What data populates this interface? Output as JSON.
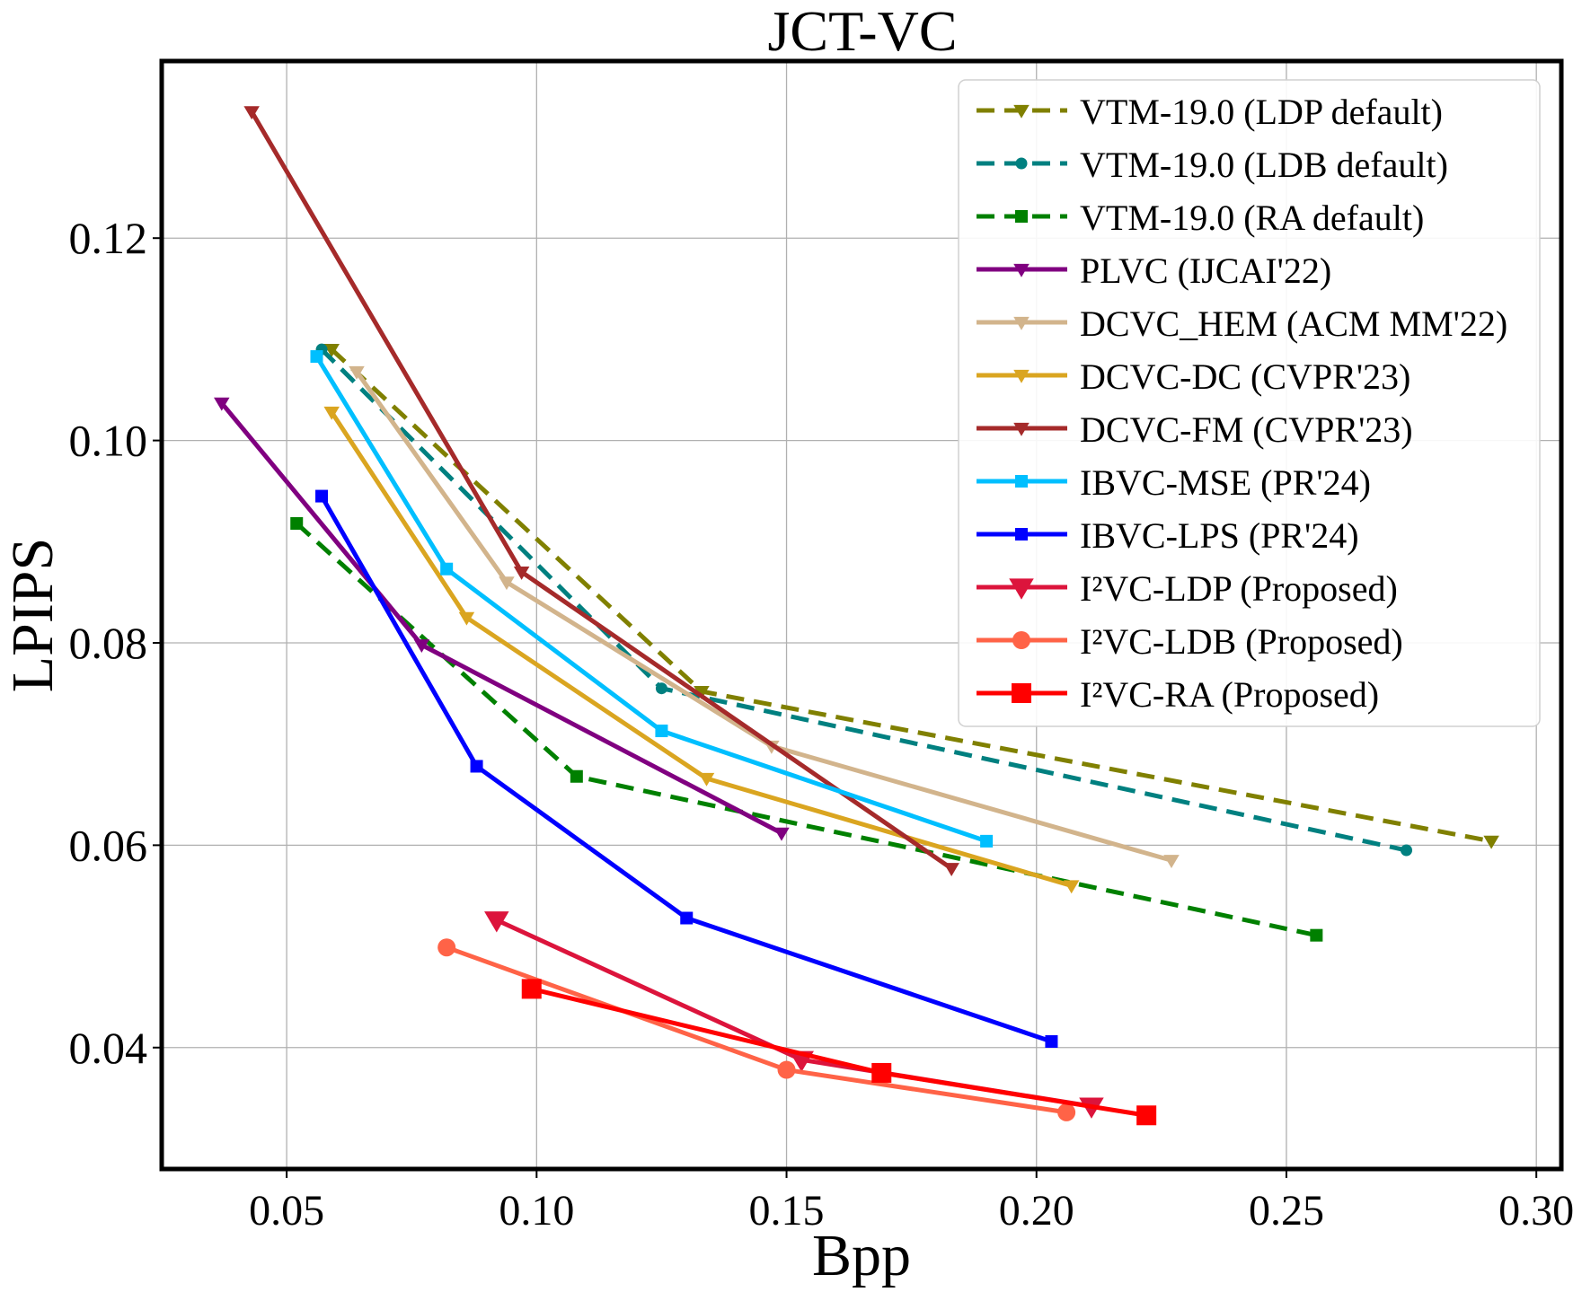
{
  "chart_data": {
    "type": "line",
    "title": "JCT-VC",
    "xlabel": "Bpp",
    "ylabel": "LPIPS",
    "xlim": [
      0.025,
      0.305
    ],
    "ylim": [
      0.028,
      0.1375
    ],
    "xticks": [
      0.05,
      0.1,
      0.15,
      0.2,
      0.25,
      0.3
    ],
    "xtick_labels": [
      "0.05",
      "0.10",
      "0.15",
      "0.20",
      "0.25",
      "0.30"
    ],
    "yticks": [
      0.04,
      0.06,
      0.08,
      0.1,
      0.12
    ],
    "ytick_labels": [
      "0.04",
      "0.06",
      "0.08",
      "0.10",
      "0.12"
    ],
    "grid": true,
    "legend_position": "top-right",
    "series": [
      {
        "name": "VTM-19.0 (LDP default)",
        "color": "#808000",
        "dash": true,
        "marker": "triangle-down",
        "marker_size": "small",
        "x": [
          0.059,
          0.133,
          0.291
        ],
        "y": [
          0.109,
          0.0752,
          0.0604
        ]
      },
      {
        "name": "VTM-19.0 (LDB default)",
        "color": "#008080",
        "dash": true,
        "marker": "circle",
        "marker_size": "small",
        "x": [
          0.057,
          0.125,
          0.274
        ],
        "y": [
          0.109,
          0.0755,
          0.0595
        ]
      },
      {
        "name": "VTM-19.0 (RA default)",
        "color": "#008000",
        "dash": true,
        "marker": "square",
        "marker_size": "small",
        "x": [
          0.052,
          0.108,
          0.256
        ],
        "y": [
          0.0918,
          0.0668,
          0.0511
        ]
      },
      {
        "name": "PLVC (IJCAI'22)",
        "color": "#800080",
        "dash": false,
        "marker": "triangle-down",
        "marker_size": "small",
        "x": [
          0.037,
          0.077,
          0.149
        ],
        "y": [
          0.1037,
          0.0798,
          0.0612
        ]
      },
      {
        "name": "DCVC_HEM (ACM MM'22)",
        "color": "#D2B48C",
        "dash": false,
        "marker": "triangle-down",
        "marker_size": "small",
        "x": [
          0.064,
          0.094,
          0.147,
          0.227
        ],
        "y": [
          0.1068,
          0.086,
          0.0698,
          0.0585
        ]
      },
      {
        "name": "DCVC-DC (CVPR'23)",
        "color": "#DAA520",
        "dash": false,
        "marker": "triangle-down",
        "marker_size": "small",
        "x": [
          0.059,
          0.086,
          0.134,
          0.207
        ],
        "y": [
          0.1028,
          0.0825,
          0.0666,
          0.056
        ]
      },
      {
        "name": "DCVC-FM (CVPR'23)",
        "color": "#A52A2A",
        "dash": false,
        "marker": "triangle-down",
        "marker_size": "small",
        "x": [
          0.043,
          0.097,
          0.183
        ],
        "y": [
          0.1325,
          0.087,
          0.0577
        ]
      },
      {
        "name": "IBVC-MSE (PR'24)",
        "color": "#00BFFF",
        "dash": false,
        "marker": "square",
        "marker_size": "small",
        "x": [
          0.056,
          0.082,
          0.125,
          0.19
        ],
        "y": [
          0.1083,
          0.0873,
          0.0713,
          0.0604
        ]
      },
      {
        "name": "IBVC-LPS (PR'24)",
        "color": "#0000FF",
        "dash": false,
        "marker": "square",
        "marker_size": "small",
        "x": [
          0.057,
          0.088,
          0.13,
          0.203
        ],
        "y": [
          0.0945,
          0.0678,
          0.0528,
          0.0406
        ]
      },
      {
        "name": "I²VC-LDP (Proposed)",
        "color": "#DC143C",
        "dash": false,
        "marker": "triangle-down",
        "marker_size": "large",
        "x": [
          0.092,
          0.153,
          0.211
        ],
        "y": [
          0.0526,
          0.0388,
          0.0342
        ]
      },
      {
        "name": "I²VC-LDB (Proposed)",
        "color": "#FF6347",
        "dash": false,
        "marker": "circle",
        "marker_size": "large",
        "x": [
          0.082,
          0.15,
          0.206
        ],
        "y": [
          0.0499,
          0.0378,
          0.0336
        ]
      },
      {
        "name": "I²VC-RA (Proposed)",
        "color": "#FF0000",
        "dash": false,
        "marker": "square",
        "marker_size": "large",
        "x": [
          0.099,
          0.169,
          0.222
        ],
        "y": [
          0.0458,
          0.0375,
          0.0333
        ]
      }
    ]
  }
}
